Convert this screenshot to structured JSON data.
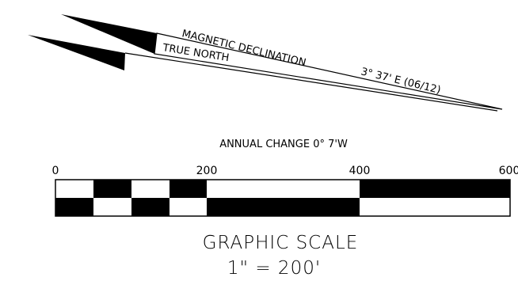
{
  "north_arrows": {
    "magnetic_label": "MAGNETIC DECLINATION",
    "true_north_label": "TRUE NORTH",
    "declination_value": "3° 37' E (06/12)",
    "annual_change": "ANNUAL CHANGE 0° 7'W"
  },
  "scale_bar": {
    "tick_labels": [
      "0",
      "200",
      "400",
      "600"
    ],
    "title": "GRAPHIC SCALE",
    "ratio": "1\" = 200'"
  },
  "colors": {
    "ink": "#000000",
    "paper": "#ffffff"
  }
}
